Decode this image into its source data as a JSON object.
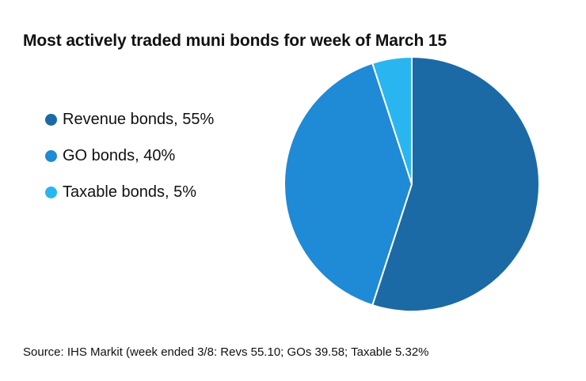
{
  "header": {
    "title": "Most actively traded muni bonds for week of March 15"
  },
  "legend": {
    "items": [
      {
        "label": "Revenue bonds, 55%",
        "color": "#1c6aa5"
      },
      {
        "label": "GO bonds, 40%",
        "color": "#1f8ad6"
      },
      {
        "label": "Taxable bonds, 5%",
        "color": "#29b6f0"
      }
    ]
  },
  "footer": {
    "source": "Source: IHS Markit (week ended 3/8: Revs 55.10; GOs 39.58; Taxable 5.32%"
  },
  "chart_data": {
    "type": "pie",
    "title": "Most actively traded muni bonds for week of March 15",
    "unit": "%",
    "categories": [
      "Revenue bonds",
      "GO bonds",
      "Taxable bonds"
    ],
    "values": [
      55,
      40,
      5
    ],
    "colors": [
      "#1c6aa5",
      "#1f8ad6",
      "#29b6f0"
    ],
    "start_angle_deg": 0,
    "direction": "clockwise",
    "slice_border_color": "#ffffff",
    "legend_position": "left"
  }
}
